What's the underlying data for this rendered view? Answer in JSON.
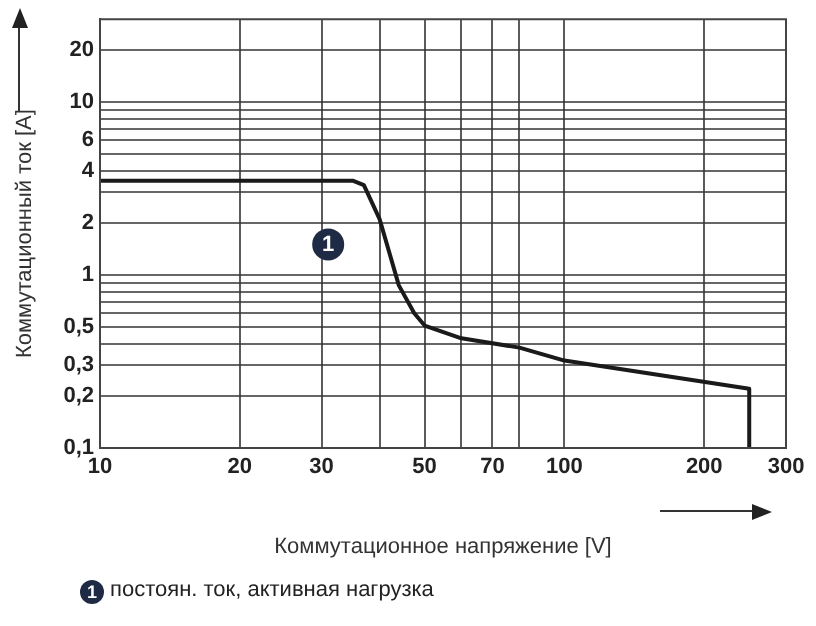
{
  "chart_data": {
    "type": "line",
    "xlabel": "Коммутационное напряжение [V]",
    "ylabel": "Коммутационный ток [A]",
    "log": "xy",
    "xlim": [
      10,
      300
    ],
    "ylim": [
      0.1,
      30
    ],
    "xticks": [
      10,
      20,
      30,
      {
        "value": 40,
        "label": null
      },
      50,
      {
        "value": 60,
        "label": null
      },
      70,
      {
        "value": 80,
        "label": null
      },
      100,
      200,
      300
    ],
    "yticks": [
      {
        "value": 0.1,
        "label": "0,1"
      },
      {
        "value": 0.2,
        "label": "0,2"
      },
      {
        "value": 0.3,
        "label": "0,3"
      },
      {
        "value": 0.4,
        "label": null
      },
      {
        "value": 0.5,
        "label": "0,5"
      },
      {
        "value": 0.6,
        "label": null
      },
      {
        "value": 0.7,
        "label": null
      },
      {
        "value": 0.8,
        "label": null
      },
      {
        "value": 0.9,
        "label": null
      },
      1,
      2,
      {
        "value": 3,
        "label": null
      },
      4,
      {
        "value": 5,
        "label": null
      },
      6,
      {
        "value": 7,
        "label": null
      },
      {
        "value": 8,
        "label": null
      },
      {
        "value": 9,
        "label": null
      },
      10,
      20
    ],
    "grid": true,
    "legend": false,
    "marker": "none",
    "line_style": "solid",
    "series": [
      {
        "color": "#1a1a1a",
        "x": [
          10,
          35,
          37,
          40,
          44,
          47.5,
          50,
          60,
          80,
          100,
          250,
          250
        ],
        "values": [
          3.5,
          3.5,
          3.3,
          2.1,
          0.87,
          0.6,
          0.51,
          0.43,
          0.38,
          0.32,
          0.22,
          0.1
        ]
      }
    ],
    "annotations": [
      {
        "text": "1",
        "x": 31,
        "y": 1.5
      },
      "постоян. ток, активная нагрузка"
    ]
  }
}
